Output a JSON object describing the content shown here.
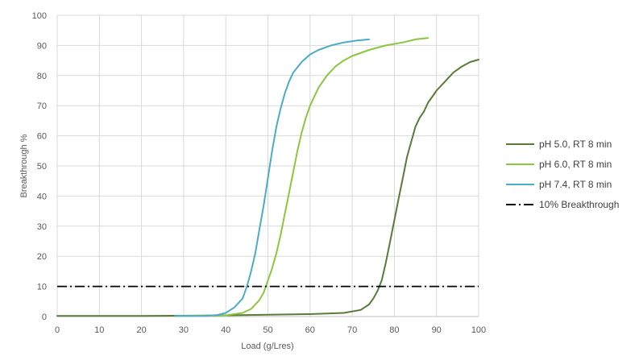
{
  "chart_data": {
    "type": "line",
    "title": "",
    "xlabel": "Load (g/Lres)",
    "ylabel": "Breakthrough %",
    "xlim": [
      0,
      100
    ],
    "ylim": [
      0,
      100
    ],
    "x_ticks": [
      0,
      10,
      20,
      30,
      40,
      50,
      60,
      70,
      80,
      90,
      100
    ],
    "y_ticks": [
      0,
      10,
      20,
      30,
      40,
      50,
      60,
      70,
      80,
      90,
      100
    ],
    "grid": true,
    "legend_position": "right",
    "series": [
      {
        "name": "pH 5.0, RT 8 min",
        "color": "#5a7a3a",
        "dash": "solid",
        "points": [
          [
            0,
            0.2
          ],
          [
            20,
            0.2
          ],
          [
            40,
            0.4
          ],
          [
            50,
            0.6
          ],
          [
            60,
            0.8
          ],
          [
            68,
            1.2
          ],
          [
            72,
            2.2
          ],
          [
            74,
            4
          ],
          [
            75,
            6
          ],
          [
            76,
            8.5
          ],
          [
            77,
            12
          ],
          [
            78,
            18
          ],
          [
            79,
            25
          ],
          [
            80,
            32
          ],
          [
            81,
            39
          ],
          [
            82,
            46
          ],
          [
            83,
            53
          ],
          [
            84,
            58
          ],
          [
            85,
            63
          ],
          [
            86,
            66
          ],
          [
            87,
            68
          ],
          [
            88,
            71
          ],
          [
            89,
            73
          ],
          [
            90,
            75
          ],
          [
            92,
            78
          ],
          [
            94,
            81
          ],
          [
            96,
            83
          ],
          [
            98,
            84.5
          ],
          [
            100,
            85.3
          ]
        ]
      },
      {
        "name": "pH 6.0, RT 8 min",
        "color": "#8cc63f",
        "dash": "solid",
        "points": [
          [
            28,
            0.2
          ],
          [
            40,
            0.4
          ],
          [
            44,
            1.2
          ],
          [
            46,
            2.5
          ],
          [
            48,
            5.5
          ],
          [
            49,
            8
          ],
          [
            50,
            12
          ],
          [
            51,
            16
          ],
          [
            52,
            21
          ],
          [
            53,
            27
          ],
          [
            54,
            34
          ],
          [
            55,
            41
          ],
          [
            56,
            48
          ],
          [
            57,
            55
          ],
          [
            58,
            61
          ],
          [
            59,
            66
          ],
          [
            60,
            70
          ],
          [
            62,
            76
          ],
          [
            64,
            80
          ],
          [
            66,
            83
          ],
          [
            68,
            85
          ],
          [
            70,
            86.5
          ],
          [
            74,
            88.5
          ],
          [
            78,
            90
          ],
          [
            82,
            91
          ],
          [
            85,
            92
          ],
          [
            88,
            92.5
          ]
        ]
      },
      {
        "name": "pH 7.4, RT 8 min",
        "color": "#4bacc6",
        "dash": "solid",
        "points": [
          [
            28,
            0.2
          ],
          [
            35,
            0.2
          ],
          [
            38,
            0.5
          ],
          [
            40,
            1.2
          ],
          [
            42,
            3
          ],
          [
            44,
            6
          ],
          [
            45,
            10
          ],
          [
            46,
            15
          ],
          [
            47,
            21
          ],
          [
            48,
            29
          ],
          [
            49,
            37
          ],
          [
            50,
            46
          ],
          [
            51,
            55
          ],
          [
            52,
            63
          ],
          [
            53,
            69
          ],
          [
            54,
            74
          ],
          [
            55,
            78
          ],
          [
            56,
            81
          ],
          [
            58,
            84.5
          ],
          [
            60,
            87
          ],
          [
            62,
            88.5
          ],
          [
            65,
            90
          ],
          [
            68,
            91
          ],
          [
            71,
            91.6
          ],
          [
            74,
            92
          ]
        ]
      },
      {
        "name": "10% Breakthrough",
        "color": "#000000",
        "dash": "dashdot",
        "points": [
          [
            0,
            10
          ],
          [
            100,
            10
          ]
        ]
      }
    ]
  }
}
